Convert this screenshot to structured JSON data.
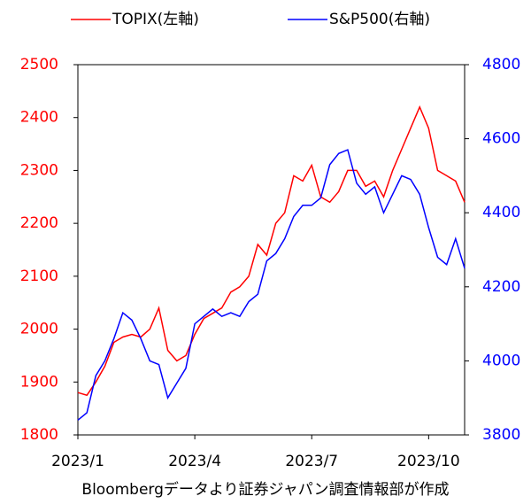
{
  "chart_data": {
    "type": "line",
    "categories": [
      "2023/1",
      null,
      null,
      null,
      null,
      null,
      null,
      null,
      null,
      null,
      null,
      null,
      null,
      "2023/4",
      null,
      null,
      null,
      null,
      null,
      null,
      null,
      null,
      null,
      null,
      null,
      null,
      "2023/7",
      null,
      null,
      null,
      null,
      null,
      null,
      null,
      null,
      null,
      null,
      null,
      null,
      "2023/10",
      null,
      null,
      null,
      null
    ],
    "series": [
      {
        "name": "TOPIX(左軸)",
        "color": "#ff0000",
        "axis": "y",
        "values": [
          1880,
          1875,
          1900,
          1930,
          1975,
          1985,
          1990,
          1985,
          2000,
          2040,
          1960,
          1940,
          1950,
          1990,
          2020,
          2030,
          2040,
          2070,
          2080,
          2100,
          2160,
          2140,
          2200,
          2220,
          2290,
          2280,
          2310,
          2250,
          2240,
          2260,
          2300,
          2300,
          2270,
          2280,
          2250,
          2300,
          2340,
          2380,
          2420,
          2380,
          2300,
          2290,
          2280,
          2240
        ]
      },
      {
        "name": "S&P500(右軸)",
        "color": "#0000ff",
        "axis": "y2",
        "values": [
          3840,
          3860,
          3960,
          4000,
          4060,
          4130,
          4110,
          4060,
          4000,
          3990,
          3900,
          3940,
          3980,
          4100,
          4120,
          4140,
          4120,
          4130,
          4120,
          4160,
          4180,
          4270,
          4290,
          4330,
          4390,
          4420,
          4420,
          4440,
          4530,
          4560,
          4570,
          4480,
          4450,
          4470,
          4400,
          4450,
          4500,
          4490,
          4450,
          4360,
          4280,
          4260,
          4330,
          4250
        ]
      }
    ],
    "ylim": [
      1800,
      2500
    ],
    "yticks": [
      1800,
      1900,
      2000,
      2100,
      2200,
      2300,
      2400,
      2500
    ],
    "ycolor": "#ff0000",
    "y2lim": [
      3800,
      4800
    ],
    "y2ticks": [
      3800,
      4000,
      4200,
      4400,
      4600,
      4800
    ],
    "y2color": "#0000ff",
    "source": "Bloombergデータより証券ジャパン調査情報部が作成"
  }
}
